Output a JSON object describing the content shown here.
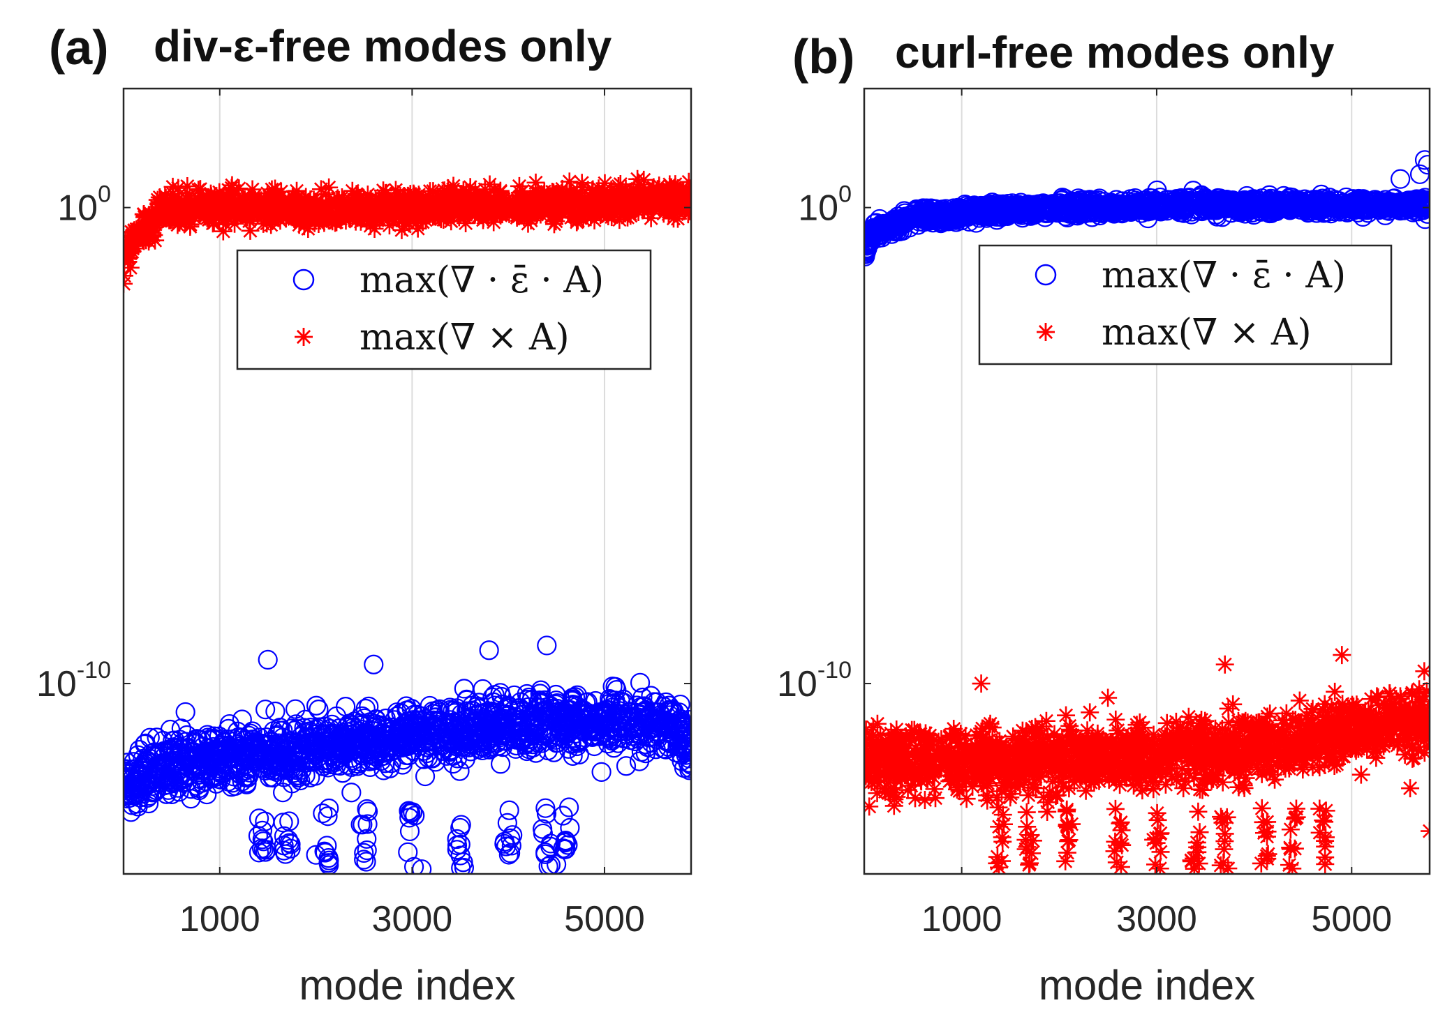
{
  "chart_data": [
    {
      "type": "scatter",
      "panel_label": "(a)",
      "title": "div-ε-free modes only",
      "xlabel": "mode index",
      "ylabel": "",
      "yscale": "log",
      "xlim": [
        0,
        5900
      ],
      "ylim_log10": [
        -14,
        2.5
      ],
      "xticks": [
        1000,
        3000,
        5000
      ],
      "xtick_labels": [
        "1000",
        "3000",
        "5000"
      ],
      "yticks": [
        {
          "base": "10",
          "exp": "0",
          "log10": 0
        },
        {
          "base": "10",
          "exp": "-10",
          "log10": -10
        }
      ],
      "grid": "x",
      "legend": {
        "position": "upper-middle",
        "entries": [
          {
            "marker": "circle",
            "color": "#0000ff",
            "label": "max(∇ · ε̄ · A)"
          },
          {
            "marker": "asterisk",
            "color": "#ff0000",
            "label": "max(∇ × A)"
          }
        ]
      },
      "series": [
        {
          "name": "max(∇ · ε̄ · A)",
          "marker": "circle",
          "color": "#0000ff",
          "trend_x": [
            0,
            600,
            1500,
            3000,
            4500,
            5700,
            5900
          ],
          "trend_log10": [
            -12.1,
            -11.6,
            -11.5,
            -11.1,
            -10.8,
            -10.8,
            -11.4
          ],
          "spread_log10": 0.55,
          "outliers": [
            [
              1500,
              -9.5
            ],
            [
              2600,
              -9.6
            ],
            [
              4400,
              -9.2
            ],
            [
              3800,
              -9.3
            ],
            [
              1400,
              -13.2
            ],
            [
              2000,
              -13.6
            ],
            [
              3100,
              -13.9
            ],
            [
              4500,
              -13.8
            ]
          ]
        },
        {
          "name": "max(∇ × A)",
          "marker": "asterisk",
          "color": "#ff0000",
          "trend_x": [
            0,
            100,
            400,
            1000,
            2000,
            3000,
            4000,
            5000,
            5900
          ],
          "trend_log10": [
            -1.1,
            -0.7,
            -0.1,
            0.05,
            -0.05,
            0.0,
            0.05,
            0.1,
            0.15
          ],
          "spread_log10": 0.3,
          "outliers": [
            [
              0,
              -1.6
            ],
            [
              1800,
              0.35
            ],
            [
              2700,
              0.25
            ],
            [
              1200,
              0.4
            ]
          ]
        }
      ]
    },
    {
      "type": "scatter",
      "panel_label": "(b)",
      "title": "curl-free modes only",
      "xlabel": "mode index",
      "ylabel": "",
      "yscale": "log",
      "xlim": [
        0,
        5800
      ],
      "ylim_log10": [
        -14,
        2.5
      ],
      "xticks": [
        1000,
        3000,
        5000
      ],
      "xtick_labels": [
        "1000",
        "3000",
        "5000"
      ],
      "yticks": [
        {
          "base": "10",
          "exp": "0",
          "log10": 0
        },
        {
          "base": "10",
          "exp": "-10",
          "log10": -10
        }
      ],
      "grid": "x",
      "legend": {
        "position": "upper-middle",
        "entries": [
          {
            "marker": "circle",
            "color": "#0000ff",
            "label": "max(∇ · ε̄ · A)"
          },
          {
            "marker": "asterisk",
            "color": "#ff0000",
            "label": "max(∇ × A)"
          }
        ]
      },
      "series": [
        {
          "name": "max(∇ · ε̄ · A)",
          "marker": "circle",
          "color": "#0000ff",
          "trend_x": [
            0,
            100,
            500,
            1500,
            3000,
            4500,
            5800
          ],
          "trend_log10": [
            -0.9,
            -0.5,
            -0.2,
            -0.05,
            0.05,
            0.05,
            0.05
          ],
          "spread_log10": 0.15,
          "outliers": [
            [
              5500,
              0.6
            ],
            [
              5750,
              1.0
            ],
            [
              5780,
              0.9
            ],
            [
              5700,
              0.7
            ]
          ]
        },
        {
          "name": "max(∇ × A)",
          "marker": "asterisk",
          "color": "#ff0000",
          "trend_x": [
            0,
            1500,
            3000,
            4500,
            5500,
            5800
          ],
          "trend_log10": [
            -11.7,
            -11.6,
            -11.5,
            -11.2,
            -10.8,
            -10.7
          ],
          "spread_log10": 0.6,
          "outliers": [
            [
              3700,
              -9.6
            ],
            [
              4900,
              -9.4
            ],
            [
              1200,
              -10.0
            ],
            [
              5800,
              -13.1
            ],
            [
              5600,
              -12.2
            ],
            [
              2500,
              -10.3
            ]
          ]
        }
      ]
    }
  ]
}
